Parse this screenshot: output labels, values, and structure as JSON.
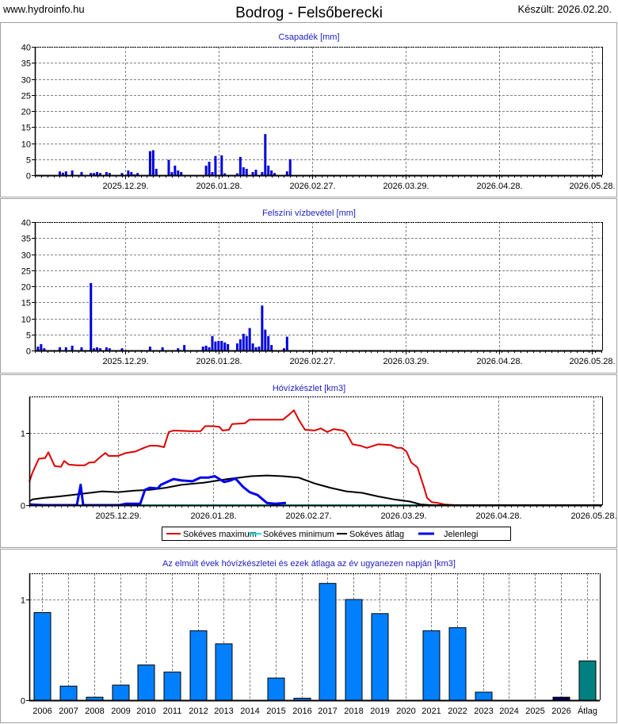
{
  "header": {
    "site": "www.hydroinfo.hu",
    "title": "Bodrog - Felsőberecki",
    "created": "Készült: 2026.02.20."
  },
  "colors": {
    "bar": "#0000dd",
    "max": "#dd0000",
    "min": "#00e0e0",
    "avg": "#000000",
    "current": "#0000ee",
    "yearbar": "#0080ff",
    "current_year": "#000060",
    "average_bar": "#008080"
  },
  "chart_data": [
    {
      "id": "precip",
      "type": "bar",
      "title": "Csapadék [mm]",
      "x_unit": "days since 2025.11.30.",
      "xlim": [
        0,
        182.2
      ],
      "ylim": [
        0,
        40
      ],
      "yticks": [
        0,
        5,
        10,
        15,
        20,
        25,
        30,
        35,
        40
      ],
      "xticks": [
        {
          "x": 29,
          "label": "2025.12.29."
        },
        {
          "x": 59,
          "label": "2026.01.28."
        },
        {
          "x": 89,
          "label": "2026.02.27."
        },
        {
          "x": 119,
          "label": "2026.03.29."
        },
        {
          "x": 149,
          "label": "2026.04.28."
        },
        {
          "x": 179,
          "label": "2026.05.28."
        }
      ],
      "x": [
        8,
        9,
        10,
        12,
        15,
        18,
        19,
        20,
        21,
        23,
        24,
        28,
        30,
        31,
        32,
        33,
        37,
        38,
        39,
        43,
        44,
        45,
        46,
        47,
        55,
        56,
        57,
        58,
        60,
        61,
        65,
        66,
        67,
        68,
        70,
        71,
        73,
        74,
        75,
        76,
        77,
        81,
        82
      ],
      "values": [
        1.2,
        0.8,
        1.2,
        1.5,
        1,
        0.7,
        0.7,
        1,
        0.7,
        1,
        0.7,
        0.7,
        1.5,
        1,
        0.3,
        0.7,
        7.5,
        7.8,
        2,
        4.8,
        1,
        3,
        1.5,
        1,
        3,
        4.2,
        1,
        6,
        6.2,
        0.6,
        0.6,
        5.7,
        2.5,
        2,
        1,
        1.7,
        1,
        12.8,
        3,
        1.5,
        0.7,
        1.2,
        5
      ]
    },
    {
      "id": "evap",
      "type": "bar",
      "title": "Felszíni vízbevétel [mm]",
      "x_unit": "days since 2025.11.30.",
      "xlim": [
        0,
        182.2
      ],
      "ylim": [
        0,
        40
      ],
      "yticks": [
        0,
        5,
        10,
        15,
        20,
        25,
        30,
        35,
        40
      ],
      "xticks": [
        {
          "x": 29,
          "label": "2025.12.29."
        },
        {
          "x": 59,
          "label": "2026.01.28."
        },
        {
          "x": 89,
          "label": "2026.02.27."
        },
        {
          "x": 119,
          "label": "2026.03.29."
        },
        {
          "x": 149,
          "label": "2026.04.28."
        },
        {
          "x": 179,
          "label": "2026.05.28."
        }
      ],
      "x": [
        1,
        2,
        3,
        8,
        10,
        12,
        15,
        18,
        19,
        20,
        21,
        23,
        24,
        28,
        37,
        41,
        46,
        48,
        54,
        55,
        56,
        57,
        58,
        59,
        60,
        61,
        62,
        65,
        66,
        67,
        68,
        69,
        70,
        71,
        72,
        73,
        74,
        75,
        76,
        80,
        81
      ],
      "values": [
        1.2,
        2,
        0.7,
        1,
        1,
        1.5,
        1,
        21,
        0.7,
        1,
        0.7,
        1,
        0.7,
        0.7,
        1.2,
        1,
        0.7,
        1.7,
        1.2,
        1.5,
        1,
        4.5,
        2.8,
        3,
        3,
        2.5,
        2,
        2.2,
        3.5,
        5.2,
        4.5,
        7,
        2.2,
        1,
        1.2,
        14,
        6.5,
        4.5,
        1.7,
        0.7,
        4.3
      ]
    },
    {
      "id": "snow",
      "type": "line",
      "title": "Hóvízkészlet [km3]",
      "x_unit": "days since 2025.11.30.",
      "xlim": [
        1,
        181.75
      ],
      "ylim": [
        0,
        1.5
      ],
      "yticks": [
        0,
        1
      ],
      "xticks": [
        {
          "x": 29,
          "label": "2025.12.29."
        },
        {
          "x": 59,
          "label": "2026.01.28."
        },
        {
          "x": 89,
          "label": "2026.02.27."
        },
        {
          "x": 119,
          "label": "2026.03.29."
        },
        {
          "x": 149,
          "label": "2026.04.28."
        },
        {
          "x": 179,
          "label": "2026.05.28."
        }
      ],
      "legend": {
        "placement": "bottom"
      },
      "series": [
        {
          "name": "Sokéves maximum",
          "color": "#dd0000",
          "points": [
            [
              1,
              0.32
            ],
            [
              2,
              0.45
            ],
            [
              4,
              0.64
            ],
            [
              6,
              0.65
            ],
            [
              7,
              0.73
            ],
            [
              9,
              0.54
            ],
            [
              11,
              0.53
            ],
            [
              12,
              0.61
            ],
            [
              13.5,
              0.56
            ],
            [
              16,
              0.55
            ],
            [
              18.5,
              0.55
            ],
            [
              20,
              0.59
            ],
            [
              21.5,
              0.59
            ],
            [
              23,
              0.65
            ],
            [
              25,
              0.72
            ],
            [
              26,
              0.68
            ],
            [
              29,
              0.68
            ],
            [
              31.5,
              0.72
            ],
            [
              34.5,
              0.74
            ],
            [
              36.5,
              0.78
            ],
            [
              39,
              0.82
            ],
            [
              41.5,
              0.82
            ],
            [
              43.5,
              0.8
            ],
            [
              45,
              1.01
            ],
            [
              46.5,
              1.03
            ],
            [
              51.5,
              1.02
            ],
            [
              55,
              1.02
            ],
            [
              56.5,
              1.09
            ],
            [
              59,
              1.09
            ],
            [
              61,
              1.08
            ],
            [
              62,
              1.03
            ],
            [
              64,
              1.04
            ],
            [
              65,
              1.12
            ],
            [
              69,
              1.13
            ],
            [
              70.5,
              1.18
            ],
            [
              81,
              1.18
            ],
            [
              83,
              1.25
            ],
            [
              84.5,
              1.31
            ],
            [
              86,
              1.18
            ],
            [
              88,
              1.04
            ],
            [
              91,
              1.03
            ],
            [
              93,
              1.06
            ],
            [
              95,
              1.01
            ],
            [
              97,
              1.05
            ],
            [
              100,
              1.03
            ],
            [
              101,
              1.0
            ],
            [
              103,
              0.84
            ],
            [
              105.5,
              0.82
            ],
            [
              107.5,
              0.79
            ],
            [
              111,
              0.84
            ],
            [
              115,
              0.83
            ],
            [
              117,
              0.79
            ],
            [
              118.5,
              0.79
            ],
            [
              120,
              0.74
            ],
            [
              121.5,
              0.59
            ],
            [
              123.5,
              0.52
            ],
            [
              125.5,
              0.25
            ],
            [
              126.5,
              0.1
            ],
            [
              128,
              0.04
            ],
            [
              130,
              0.03
            ],
            [
              132,
              0.01
            ],
            [
              135.5,
              0
            ]
          ]
        },
        {
          "name": "Sokéves minimum",
          "color": "#00e0e0",
          "points": [
            [
              1,
              0
            ],
            [
              181.75,
              0
            ]
          ]
        },
        {
          "name": "Sokéves átlag",
          "color": "#000000",
          "points": [
            [
              1,
              0.05
            ],
            [
              2,
              0.08
            ],
            [
              5.5,
              0.1
            ],
            [
              10.5,
              0.12
            ],
            [
              16.5,
              0.15
            ],
            [
              24,
              0.19
            ],
            [
              29,
              0.18
            ],
            [
              34,
              0.2
            ],
            [
              39,
              0.21
            ],
            [
              44,
              0.24
            ],
            [
              49,
              0.28
            ],
            [
              56,
              0.31
            ],
            [
              63.5,
              0.36
            ],
            [
              71,
              0.4
            ],
            [
              76,
              0.41
            ],
            [
              81,
              0.4
            ],
            [
              86,
              0.38
            ],
            [
              91,
              0.3
            ],
            [
              96,
              0.24
            ],
            [
              101,
              0.19
            ],
            [
              106,
              0.17
            ],
            [
              111,
              0.12
            ],
            [
              116,
              0.08
            ],
            [
              121,
              0.05
            ],
            [
              124.5,
              0.01
            ],
            [
              128,
              0
            ],
            [
              181.75,
              0
            ]
          ]
        },
        {
          "name": "Jelenlegi",
          "color": "#0000ee",
          "points": [
            [
              1,
              0.01
            ],
            [
              5.5,
              0
            ],
            [
              16,
              0
            ],
            [
              16.6,
              0.14
            ],
            [
              17.2,
              0.28
            ],
            [
              18,
              0
            ],
            [
              29.5,
              0
            ],
            [
              31.5,
              0.02
            ],
            [
              36,
              0.02
            ],
            [
              37.5,
              0.21
            ],
            [
              39,
              0.24
            ],
            [
              41.5,
              0.23
            ],
            [
              42.5,
              0.28
            ],
            [
              44.5,
              0.32
            ],
            [
              46.5,
              0.36
            ],
            [
              49,
              0.34
            ],
            [
              52.5,
              0.33
            ],
            [
              55,
              0.38
            ],
            [
              57.5,
              0.38
            ],
            [
              59.5,
              0.4
            ],
            [
              62.5,
              0.32
            ],
            [
              64.5,
              0.34
            ],
            [
              66,
              0.37
            ],
            [
              68.5,
              0.25
            ],
            [
              70.5,
              0.18
            ],
            [
              73,
              0.14
            ],
            [
              76,
              0.03
            ],
            [
              78.5,
              0.02
            ],
            [
              82,
              0.03
            ]
          ]
        }
      ]
    },
    {
      "id": "years",
      "type": "bar",
      "title": "Az elmúlt évek hóvízkészletei és ezek átlaga az év ugyanezen napján [km3]",
      "ylim": [
        0,
        1.26
      ],
      "yticks": [
        0,
        1
      ],
      "categories": [
        "2006",
        "2007",
        "2008",
        "2009",
        "2010",
        "2011",
        "2012",
        "2013",
        "2014",
        "2015",
        "2016",
        "2017",
        "2018",
        "2019",
        "2020",
        "2021",
        "2022",
        "2023",
        "2024",
        "2025",
        "2026",
        "Átlag"
      ],
      "values": [
        0.87,
        0.14,
        0.03,
        0.15,
        0.35,
        0.28,
        0.69,
        0.56,
        0,
        0.22,
        0.02,
        1.16,
        1.0,
        0.86,
        0,
        0.69,
        0.72,
        0.08,
        0,
        0,
        0.03,
        0.39
      ]
    }
  ]
}
